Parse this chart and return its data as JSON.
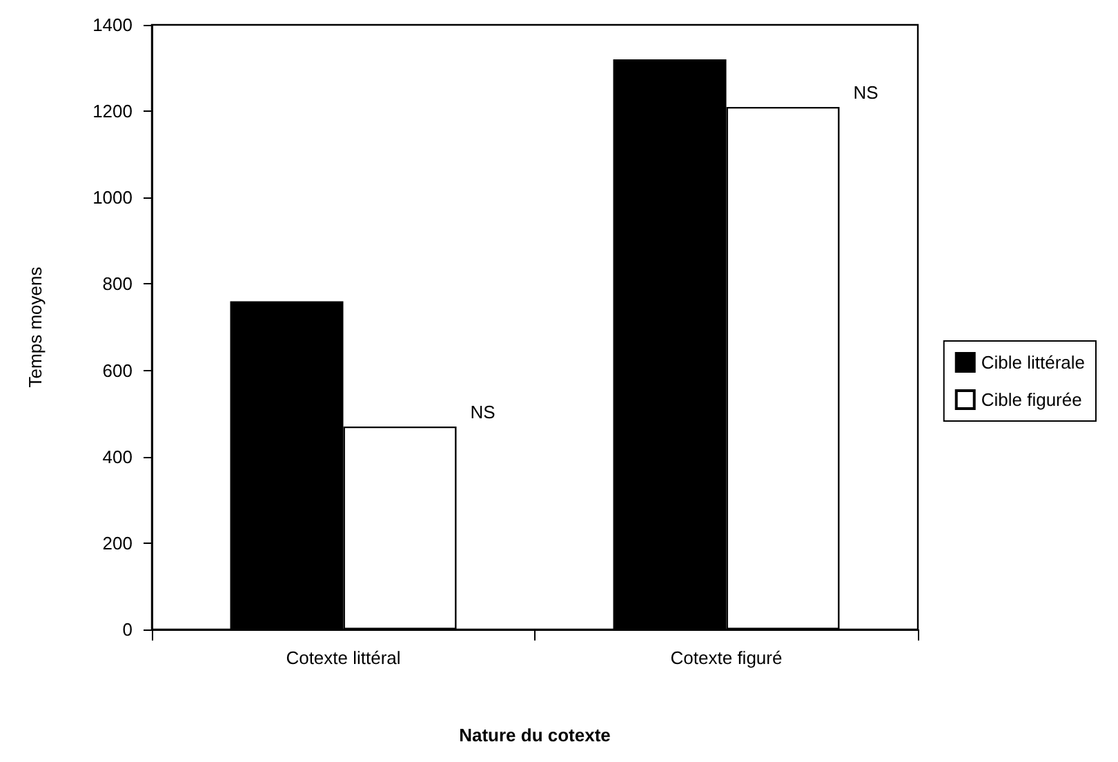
{
  "chart_data": {
    "type": "bar",
    "xlabel": "Nature du cotexte",
    "ylabel": "Temps moyens",
    "categories": [
      "Cotexte littéral",
      "Cotexte figuré"
    ],
    "series": [
      {
        "name": "Cible littérale",
        "color": "#000000",
        "values": [
          760,
          1320
        ]
      },
      {
        "name": "Cible figurée",
        "color": "#ffffff",
        "values": [
          470,
          1210
        ]
      }
    ],
    "ylim": [
      0,
      1400
    ],
    "yticks": [
      0,
      200,
      400,
      600,
      800,
      1000,
      1200,
      1400
    ],
    "grid": false,
    "legend": "right",
    "annotations": [
      "NS",
      "NS"
    ]
  }
}
